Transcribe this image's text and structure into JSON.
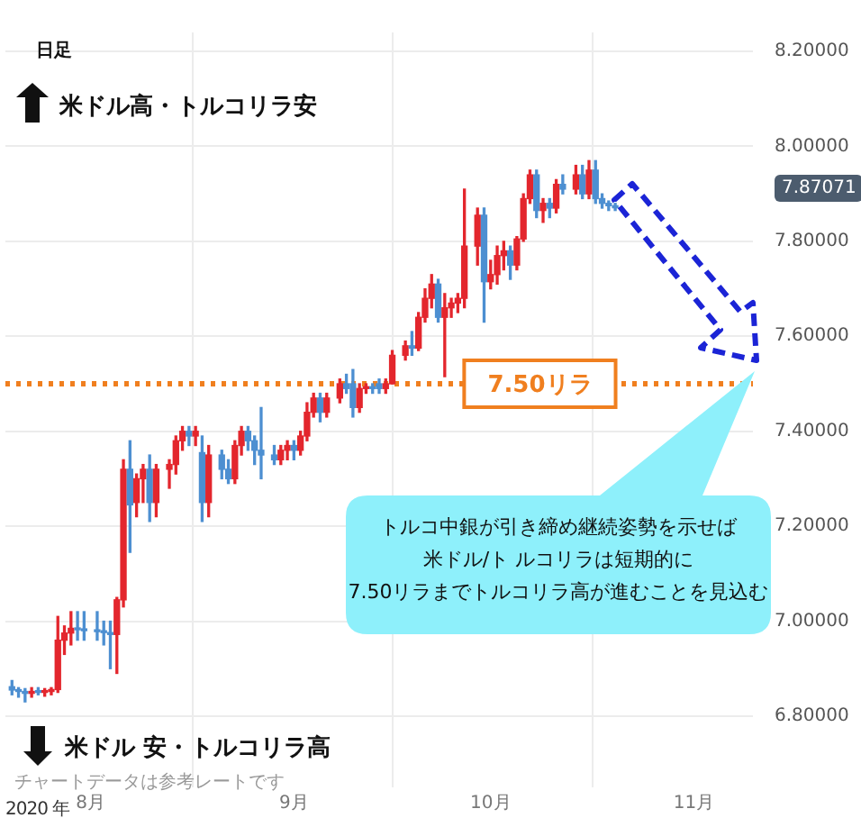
{
  "chart_data": {
    "type": "candlestick",
    "xlabel": "2020 年",
    "x": [
      "2020-07-20",
      "2020-07-21",
      "2020-07-22",
      "2020-07-23",
      "2020-07-24",
      "2020-07-25",
      "2020-07-26",
      "2020-07-27",
      "2020-07-28",
      "2020-07-29",
      "2020-07-30",
      "2020-07-31",
      "2020-08-02",
      "2020-08-03",
      "2020-08-04",
      "2020-08-05",
      "2020-08-06",
      "2020-08-07",
      "2020-08-08",
      "2020-08-09",
      "2020-08-10",
      "2020-08-11",
      "2020-08-13",
      "2020-08-14",
      "2020-08-15",
      "2020-08-16",
      "2020-08-17",
      "2020-08-18",
      "2020-08-19",
      "2020-08-21",
      "2020-08-22",
      "2020-08-23",
      "2020-08-24",
      "2020-08-25",
      "2020-08-26",
      "2020-08-27",
      "2020-08-29",
      "2020-08-30",
      "2020-08-31",
      "2020-09-01",
      "2020-09-02",
      "2020-09-03",
      "2020-09-04",
      "2020-09-05",
      "2020-09-06",
      "2020-09-08",
      "2020-09-09",
      "2020-09-10",
      "2020-09-11",
      "2020-09-12",
      "2020-09-13",
      "2020-09-14",
      "2020-09-15",
      "2020-09-16",
      "2020-09-18",
      "2020-09-19",
      "2020-09-20",
      "2020-09-21",
      "2020-09-22",
      "2020-09-23",
      "2020-09-24",
      "2020-09-25",
      "2020-09-26",
      "2020-09-27",
      "2020-09-29",
      "2020-09-30",
      "2020-10-01",
      "2020-10-02",
      "2020-10-03",
      "2020-10-04",
      "2020-10-05",
      "2020-10-06",
      "2020-10-07",
      "2020-10-08",
      "2020-10-09",
      "2020-10-10",
      "2020-10-11",
      "2020-10-12",
      "2020-10-14",
      "2020-10-15",
      "2020-10-16",
      "2020-10-17",
      "2020-10-18",
      "2020-10-19",
      "2020-10-20"
    ],
    "ohlc": [
      [
        6.862,
        6.875,
        6.845,
        6.855
      ],
      [
        6.855,
        6.86,
        6.84,
        6.852
      ],
      [
        6.852,
        6.858,
        6.83,
        6.848
      ],
      [
        6.848,
        6.86,
        6.84,
        6.852
      ],
      [
        6.852,
        6.86,
        6.845,
        6.85
      ],
      [
        6.85,
        6.858,
        6.842,
        6.852
      ],
      [
        6.852,
        6.86,
        6.845,
        6.856
      ],
      [
        6.856,
        7.01,
        6.85,
        6.96
      ],
      [
        6.96,
        6.99,
        6.93,
        6.975
      ],
      [
        6.975,
        7.02,
        6.95,
        6.985
      ],
      [
        6.985,
        7.02,
        6.96,
        6.982
      ],
      [
        6.982,
        7.02,
        6.96,
        6.98
      ],
      [
        6.98,
        7.02,
        6.96,
        6.978
      ],
      [
        6.978,
        7.0,
        6.95,
        6.976
      ],
      [
        6.976,
        7.0,
        6.9,
        6.972
      ],
      [
        6.972,
        7.05,
        6.89,
        7.045
      ],
      [
        7.045,
        7.34,
        7.03,
        7.32
      ],
      [
        7.32,
        7.38,
        7.145,
        7.245
      ],
      [
        7.25,
        7.31,
        7.22,
        7.3
      ],
      [
        7.3,
        7.33,
        7.25,
        7.32
      ],
      [
        7.32,
        7.35,
        7.21,
        7.25
      ],
      [
        7.25,
        7.33,
        7.22,
        7.32
      ],
      [
        7.32,
        7.34,
        7.28,
        7.33
      ],
      [
        7.33,
        7.39,
        7.31,
        7.38
      ],
      [
        7.38,
        7.41,
        7.36,
        7.4
      ],
      [
        7.4,
        7.41,
        7.37,
        7.39
      ],
      [
        7.39,
        7.41,
        7.37,
        7.4
      ],
      [
        7.355,
        7.39,
        7.21,
        7.25
      ],
      [
        7.25,
        7.37,
        7.22,
        7.35
      ],
      [
        7.35,
        7.36,
        7.3,
        7.32
      ],
      [
        7.32,
        7.34,
        7.29,
        7.3
      ],
      [
        7.3,
        7.38,
        7.29,
        7.37
      ],
      [
        7.37,
        7.41,
        7.35,
        7.4
      ],
      [
        7.4,
        7.41,
        7.36,
        7.38
      ],
      [
        7.38,
        7.39,
        7.33,
        7.36
      ],
      [
        7.36,
        7.45,
        7.3,
        7.35
      ],
      [
        7.35,
        7.37,
        7.33,
        7.34
      ],
      [
        7.34,
        7.37,
        7.33,
        7.36
      ],
      [
        7.36,
        7.38,
        7.34,
        7.37
      ],
      [
        7.37,
        7.38,
        7.34,
        7.36
      ],
      [
        7.36,
        7.4,
        7.35,
        7.39
      ],
      [
        7.39,
        7.46,
        7.38,
        7.44
      ],
      [
        7.44,
        7.48,
        7.43,
        7.47
      ],
      [
        7.47,
        7.48,
        7.42,
        7.44
      ],
      [
        7.44,
        7.48,
        7.43,
        7.47
      ],
      [
        7.47,
        7.51,
        7.46,
        7.5
      ],
      [
        7.5,
        7.52,
        7.48,
        7.49
      ],
      [
        7.5,
        7.53,
        7.43,
        7.45
      ],
      [
        7.45,
        7.5,
        7.44,
        7.49
      ],
      [
        7.49,
        7.5,
        7.48,
        7.492
      ],
      [
        7.492,
        7.5,
        7.48,
        7.49
      ],
      [
        7.5,
        7.51,
        7.48,
        7.49
      ],
      [
        7.49,
        7.51,
        7.48,
        7.5
      ],
      [
        7.5,
        7.57,
        7.5,
        7.56
      ],
      [
        7.56,
        7.59,
        7.55,
        7.58
      ],
      [
        7.58,
        7.61,
        7.56,
        7.575
      ],
      [
        7.575,
        7.65,
        7.57,
        7.64
      ],
      [
        7.64,
        7.7,
        7.63,
        7.68
      ],
      [
        7.68,
        7.73,
        7.66,
        7.71
      ],
      [
        7.71,
        7.72,
        7.63,
        7.64
      ],
      [
        7.64,
        7.69,
        7.515,
        7.66
      ],
      [
        7.66,
        7.68,
        7.64,
        7.67
      ],
      [
        7.67,
        7.69,
        7.65,
        7.68
      ],
      [
        7.68,
        7.91,
        7.66,
        7.79
      ],
      [
        7.79,
        7.87,
        7.75,
        7.855
      ],
      [
        7.855,
        7.87,
        7.63,
        7.715
      ],
      [
        7.715,
        7.76,
        7.7,
        7.73
      ],
      [
        7.73,
        7.79,
        7.71,
        7.77
      ],
      [
        7.77,
        7.8,
        7.74,
        7.78
      ],
      [
        7.78,
        7.79,
        7.72,
        7.75
      ],
      [
        7.75,
        7.81,
        7.74,
        7.805
      ],
      [
        7.805,
        7.9,
        7.8,
        7.89
      ],
      [
        7.89,
        7.95,
        7.88,
        7.94
      ],
      [
        7.94,
        7.95,
        7.85,
        7.865
      ],
      [
        7.865,
        7.89,
        7.84,
        7.88
      ],
      [
        7.88,
        7.89,
        7.85,
        7.87
      ],
      [
        7.87,
        7.93,
        7.86,
        7.92
      ],
      [
        7.92,
        7.94,
        7.9,
        7.91
      ],
      [
        7.91,
        7.96,
        7.9,
        7.94
      ],
      [
        7.94,
        7.96,
        7.89,
        7.9
      ],
      [
        7.9,
        7.97,
        7.89,
        7.95
      ],
      [
        7.95,
        7.97,
        7.88,
        7.89
      ],
      [
        7.89,
        7.9,
        7.87,
        7.88
      ],
      [
        7.88,
        7.885,
        7.865,
        7.875
      ],
      [
        7.875,
        7.88,
        7.865,
        7.87071
      ]
    ],
    "xlim": [
      "2020-07-19",
      "2020-11-10"
    ],
    "xticks": [
      {
        "value": "2020-08-01",
        "label": "8月"
      },
      {
        "value": "2020-09-01",
        "label": "9月"
      },
      {
        "value": "2020-10-01",
        "label": "10月"
      },
      {
        "value": "2020-11-01",
        "label": "11月"
      }
    ],
    "ylim": [
      6.65,
      8.24
    ],
    "yticks": [
      {
        "value": 6.8,
        "label": "6.80000"
      },
      {
        "value": 7.0,
        "label": "7.00000"
      },
      {
        "value": 7.2,
        "label": "7.20000"
      },
      {
        "value": 7.4,
        "label": "7.40000"
      },
      {
        "value": 7.6,
        "label": "7.60000"
      },
      {
        "value": 7.8,
        "label": "7.80000"
      },
      {
        "value": 8.0,
        "label": "8.00000"
      },
      {
        "value": 8.2,
        "label": "8.20000"
      }
    ],
    "grid": true,
    "legend": false,
    "ref_lines": [
      {
        "axis": "y",
        "value": 7.5,
        "label": "7.50リラ",
        "color": "#f07f1f",
        "line_style": "dotted"
      }
    ],
    "annotations": [
      "日足",
      "米ドル高・トルコリラ安",
      "米ドル 安・トルコリラ高",
      "チャートデータは参考レートです",
      "トルコ中銀が引き締め継続姿勢を示せば",
      "米ドル/ト ルコリラは短期的に",
      "7.50リラまでトルコリラ高が進むことを見込む",
      "7.87071"
    ]
  }
}
